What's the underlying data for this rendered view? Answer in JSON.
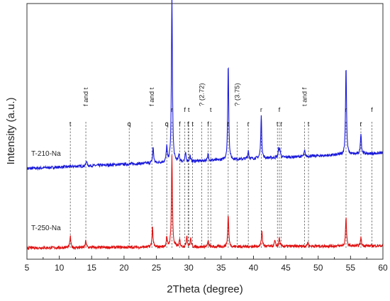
{
  "chart_data": {
    "type": "line",
    "title": "",
    "xlabel": "2Theta (degree)",
    "ylabel": "Intensity (a.u.)",
    "xlim": [
      5,
      60
    ],
    "xticks": [
      5,
      10,
      15,
      20,
      25,
      30,
      35,
      40,
      45,
      50,
      55,
      60
    ],
    "xtick_labels": [
      "5",
      "10",
      "15",
      "20",
      "25",
      "30",
      "35",
      "40",
      "45",
      "50",
      "55",
      "60"
    ],
    "y_tick_labels_shown": false,
    "grid": false,
    "legend": "none",
    "series": [
      {
        "name": "T-210-Na",
        "color": "#1a1adb",
        "baseline_start": 2,
        "baseline_end": 24,
        "peaks": [
          {
            "x": 14.2,
            "h": 8
          },
          {
            "x": 24.5,
            "h": 22
          },
          {
            "x": 26.6,
            "h": 22
          },
          {
            "x": 27.4,
            "h": 235
          },
          {
            "x": 28.5,
            "h": 10
          },
          {
            "x": 29.5,
            "h": 12
          },
          {
            "x": 30.2,
            "h": 8
          },
          {
            "x": 33.0,
            "h": 10
          },
          {
            "x": 36.1,
            "h": 135
          },
          {
            "x": 39.2,
            "h": 12
          },
          {
            "x": 41.2,
            "h": 60
          },
          {
            "x": 43.9,
            "h": 12
          },
          {
            "x": 44.1,
            "h": 10
          },
          {
            "x": 47.9,
            "h": 8
          },
          {
            "x": 54.3,
            "h": 125
          },
          {
            "x": 56.6,
            "h": 30
          }
        ]
      },
      {
        "name": "T-250-Na",
        "color": "#e01212",
        "baseline_start": 0,
        "baseline_end": 3,
        "peaks": [
          {
            "x": 11.7,
            "h": 16
          },
          {
            "x": 14.1,
            "h": 10
          },
          {
            "x": 24.4,
            "h": 28
          },
          {
            "x": 26.6,
            "h": 14
          },
          {
            "x": 27.4,
            "h": 130
          },
          {
            "x": 28.6,
            "h": 10
          },
          {
            "x": 29.7,
            "h": 16
          },
          {
            "x": 30.3,
            "h": 12
          },
          {
            "x": 33.0,
            "h": 8
          },
          {
            "x": 36.1,
            "h": 45
          },
          {
            "x": 41.3,
            "h": 22
          },
          {
            "x": 43.3,
            "h": 8
          },
          {
            "x": 44.0,
            "h": 12
          },
          {
            "x": 48.4,
            "h": 6
          },
          {
            "x": 54.3,
            "h": 40
          },
          {
            "x": 56.6,
            "h": 12
          }
        ]
      }
    ],
    "annotations": [
      {
        "x": 11.7,
        "text": "t"
      },
      {
        "x": 14.1,
        "text": "f and t"
      },
      {
        "x": 20.8,
        "text": "q"
      },
      {
        "x": 24.3,
        "text": "f and t"
      },
      {
        "x": 26.6,
        "text": "q"
      },
      {
        "x": 27.4,
        "text": "r"
      },
      {
        "x": 28.6,
        "text": "f"
      },
      {
        "x": 29.4,
        "text": "f"
      },
      {
        "x": 29.9,
        "text": "f"
      },
      {
        "x": 30.0,
        "text": "t"
      },
      {
        "x": 30.6,
        "text": "t"
      },
      {
        "x": 32.0,
        "text": "? (2.72)"
      },
      {
        "x": 33.0,
        "text": "f"
      },
      {
        "x": 33.4,
        "text": "t"
      },
      {
        "x": 36.1,
        "text": "r"
      },
      {
        "x": 37.5,
        "text": "? (3.75)"
      },
      {
        "x": 39.2,
        "text": "r"
      },
      {
        "x": 41.2,
        "text": "r"
      },
      {
        "x": 43.7,
        "text": "t"
      },
      {
        "x": 44.0,
        "text": "f"
      },
      {
        "x": 44.3,
        "text": "r"
      },
      {
        "x": 47.9,
        "text": "t and f"
      },
      {
        "x": 48.5,
        "text": "t"
      },
      {
        "x": 54.3,
        "text": "r"
      },
      {
        "x": 56.6,
        "text": "r"
      },
      {
        "x": 58.3,
        "text": "f"
      }
    ]
  }
}
